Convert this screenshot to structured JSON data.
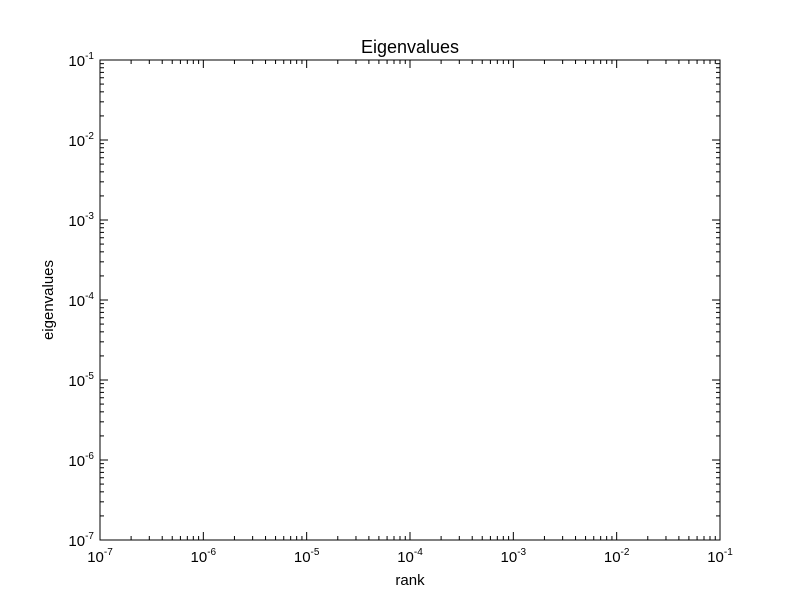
{
  "chart_data": {
    "type": "scatter",
    "title": "Eigenvalues",
    "xlabel": "rank",
    "ylabel": "eigenvalues",
    "xscale": "log",
    "yscale": "log",
    "xlim": [
      1e-07,
      0.1
    ],
    "ylim": [
      1e-07,
      0.1
    ],
    "x_ticks": [
      {
        "base": "10",
        "exp": "-7"
      },
      {
        "base": "10",
        "exp": "-6"
      },
      {
        "base": "10",
        "exp": "-5"
      },
      {
        "base": "10",
        "exp": "-4"
      },
      {
        "base": "10",
        "exp": "-3"
      },
      {
        "base": "10",
        "exp": "-2"
      },
      {
        "base": "10",
        "exp": "-1"
      }
    ],
    "y_ticks": [
      {
        "base": "10",
        "exp": "-7"
      },
      {
        "base": "10",
        "exp": "-6"
      },
      {
        "base": "10",
        "exp": "-5"
      },
      {
        "base": "10",
        "exp": "-4"
      },
      {
        "base": "10",
        "exp": "-3"
      },
      {
        "base": "10",
        "exp": "-2"
      },
      {
        "base": "10",
        "exp": "-1"
      }
    ],
    "series": [],
    "grid": false
  }
}
